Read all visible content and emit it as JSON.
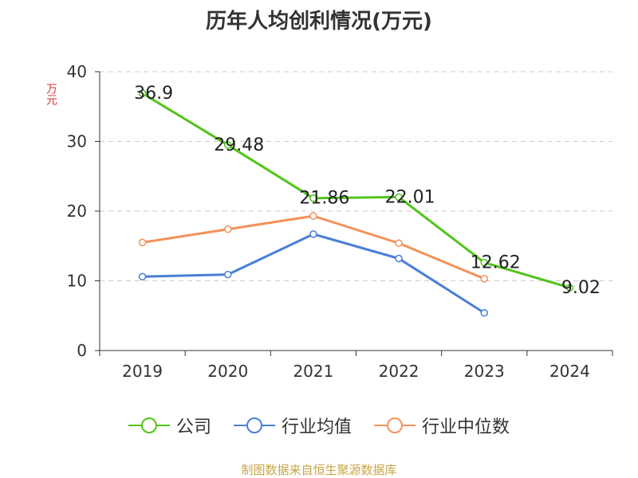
{
  "chart_data": {
    "type": "line",
    "title": "历年人均创利情况(万元)",
    "ylabel": "万元",
    "xlabel": "",
    "categories": [
      "2019",
      "2020",
      "2021",
      "2022",
      "2023",
      "2024"
    ],
    "ylim": [
      0,
      40
    ],
    "yticks": [
      0,
      10,
      20,
      30,
      40
    ],
    "grid": true,
    "legend_position": "bottom",
    "series": [
      {
        "name": "公司",
        "color": "#52c41a",
        "values": [
          36.9,
          29.48,
          21.86,
          22.01,
          12.62,
          9.02
        ],
        "labels": [
          "36.9",
          "29.48",
          "21.86",
          "22.01",
          "12.62",
          "9.02"
        ]
      },
      {
        "name": "行业均值",
        "color": "#4a7fd6",
        "values": [
          10.6,
          10.9,
          16.7,
          13.2,
          5.4,
          null
        ]
      },
      {
        "name": "行业中位数",
        "color": "#f4915a",
        "values": [
          15.5,
          17.4,
          19.3,
          15.4,
          10.3,
          null
        ]
      }
    ]
  },
  "footer": "制图数据来自恒生聚源数据库"
}
